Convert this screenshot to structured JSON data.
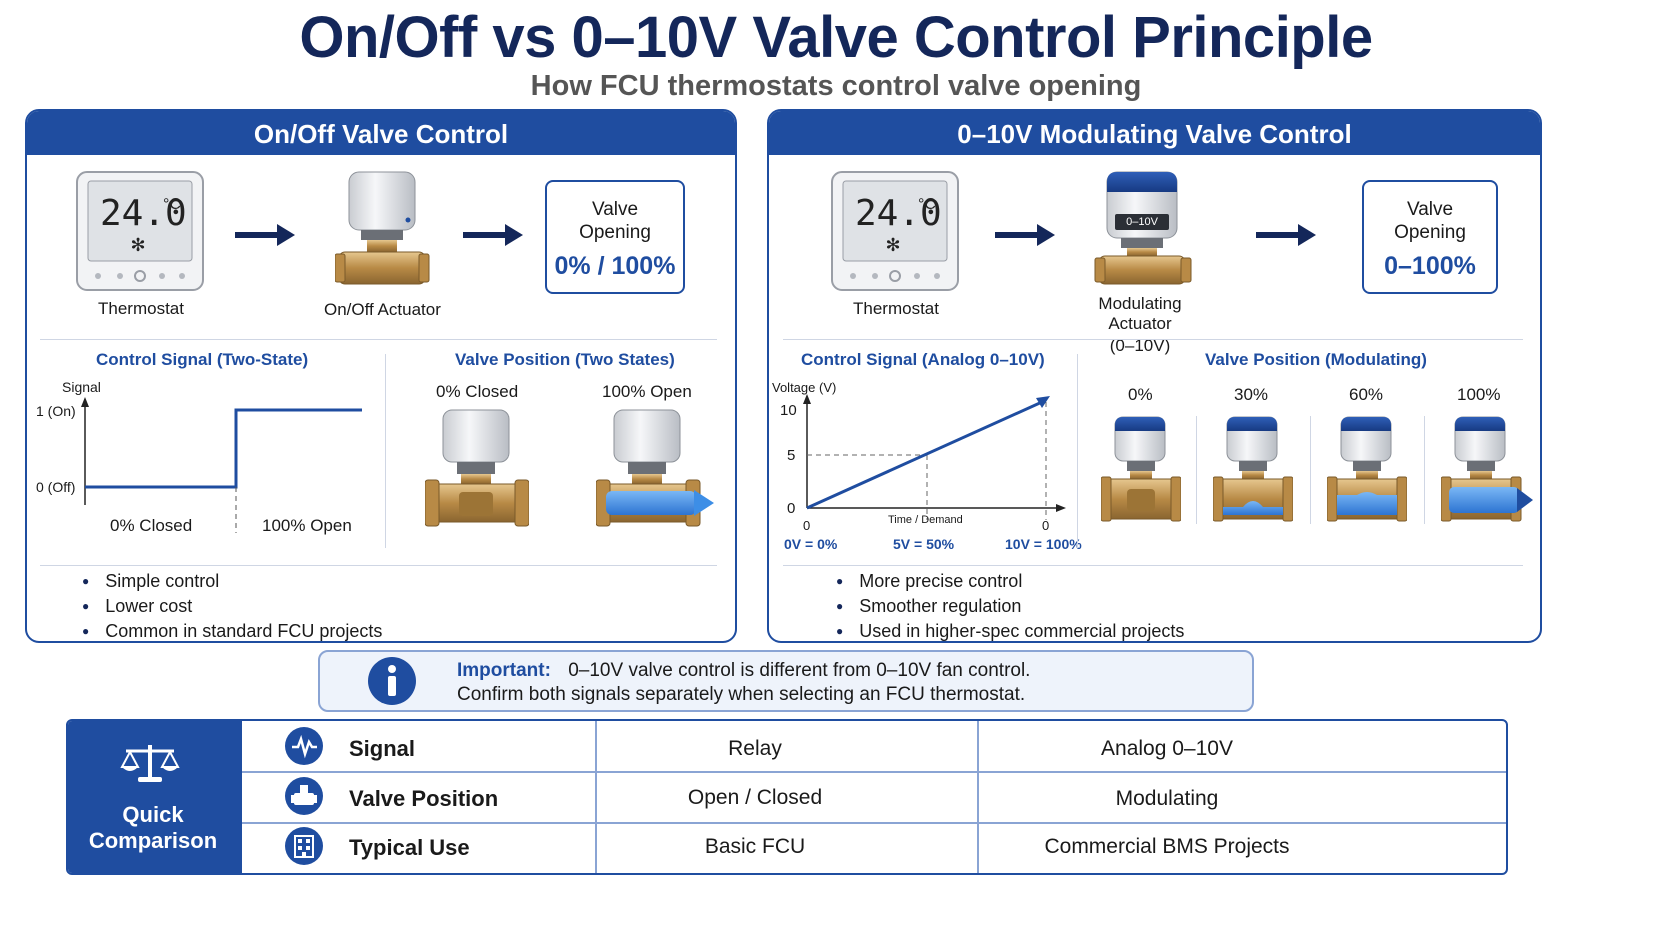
{
  "header": {
    "title": "On/Off vs 0–10V Valve Control Principle",
    "subtitle": "How FCU thermostats control valve opening"
  },
  "left_panel": {
    "heading": "On/Off Valve Control",
    "thermostat_display": "24.0",
    "thermostat_unit": "°C",
    "thermostat_label": "Thermostat",
    "actuator_label": "On/Off Actuator",
    "opening_label_1": "Valve",
    "opening_label_2": "Opening",
    "opening_value": "0% / 100%",
    "signal_heading": "Control Signal (Two-State)",
    "signal_axis": "Signal",
    "on_label": "1 (On)",
    "off_label": "0 (Off)",
    "closed_label": "0% Closed",
    "open_label": "100% Open",
    "position_heading": "Valve Position (Two States)",
    "position_closed": "0% Closed",
    "position_open": "100% Open",
    "bullets": [
      "Simple control",
      "Lower cost",
      "Common in standard FCU projects"
    ]
  },
  "right_panel": {
    "heading": "0–10V Modulating Valve Control",
    "thermostat_display": "24.0",
    "thermostat_unit": "°C",
    "thermostat_label": "Thermostat",
    "actuator_badge": "0–10V",
    "actuator_label_1": "Modulating Actuator",
    "actuator_label_2": "(0–10V)",
    "opening_label_1": "Valve",
    "opening_label_2": "Opening",
    "opening_value": "0–100%",
    "signal_heading": "Control Signal (Analog 0–10V)",
    "y_axis_label": "Voltage (V)",
    "y_ticks": [
      "10",
      "5",
      "0"
    ],
    "x_axis_label": "Time / Demand",
    "x_tick_start": "0",
    "x_tick_end": "0",
    "mapping": [
      "0V = 0%",
      "5V = 50%",
      "10V = 100%"
    ],
    "position_heading": "Valve Position (Modulating)",
    "positions": [
      "0%",
      "30%",
      "60%",
      "100%"
    ],
    "bullets": [
      "More precise control",
      "Smoother regulation",
      "Used in higher-spec commercial projects"
    ]
  },
  "info": {
    "bold": "Important:",
    "line1": "0–10V valve control is different from 0–10V fan control.",
    "line2": "Confirm both signals separately when selecting an FCU thermostat."
  },
  "quick_comparison": {
    "title_1": "Quick",
    "title_2": "Comparison",
    "rows": [
      {
        "label": "Signal",
        "onoff": "Relay",
        "modulating": "Analog 0–10V",
        "icon": "pulse-icon"
      },
      {
        "label": "Valve Position",
        "onoff": "Open / Closed",
        "modulating": "Modulating",
        "icon": "valve-icon"
      },
      {
        "label": "Typical Use",
        "onoff": "Basic FCU",
        "modulating": "Commercial BMS Projects",
        "icon": "building-icon"
      }
    ]
  },
  "colors": {
    "primary": "#1f4da0",
    "dark": "#14275a",
    "brass": "#c49a5a",
    "water": "#3d8ee6"
  }
}
